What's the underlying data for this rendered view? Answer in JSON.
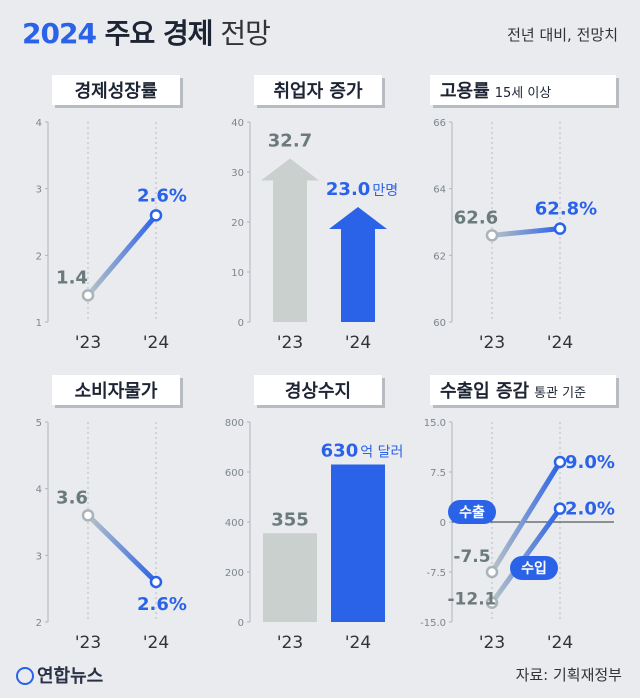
{
  "header": {
    "title_year": "2024",
    "title_main": " 주요 경제",
    "title_light": " 전망",
    "subtitle": "전년 대비, 전망치"
  },
  "footer": {
    "logo_text": "연합뉴스",
    "source": "자료: 기획재정부"
  },
  "colors": {
    "blue": "#2b63e8",
    "gray_text": "#6b7a7a",
    "gray_fill": "#c9d0cd",
    "gray_line": "#a9b4b8",
    "background": "#e9ebee",
    "panel_label_bg": "#ffffff"
  },
  "chart_data": [
    {
      "type": "line",
      "title": "경제성장률",
      "categories": [
        "'23",
        "'24"
      ],
      "values": [
        1.4,
        2.6
      ],
      "value_labels": [
        "1.4",
        "2.6%"
      ],
      "yticks": [
        1,
        2,
        3,
        4
      ],
      "ylim": [
        1,
        4
      ]
    },
    {
      "type": "bar",
      "title": "취업자 증가",
      "categories": [
        "'23",
        "'24"
      ],
      "values": [
        32.7,
        23.0
      ],
      "value_labels": [
        "32.7",
        "23.0"
      ],
      "unit_label": "만명",
      "yticks": [
        0,
        10,
        20,
        30,
        40
      ],
      "ylim": [
        0,
        40
      ]
    },
    {
      "type": "line",
      "title": "고용률",
      "title_note": "15세 이상",
      "categories": [
        "'23",
        "'24"
      ],
      "values": [
        62.6,
        62.8
      ],
      "value_labels": [
        "62.6",
        "62.8%"
      ],
      "yticks": [
        60,
        62,
        64,
        66
      ],
      "ylim": [
        60,
        66
      ]
    },
    {
      "type": "line",
      "title": "소비자물가",
      "categories": [
        "'23",
        "'24"
      ],
      "values": [
        3.6,
        2.6
      ],
      "value_labels": [
        "3.6",
        "2.6%"
      ],
      "yticks": [
        2,
        3,
        4,
        5
      ],
      "ylim": [
        2,
        5
      ]
    },
    {
      "type": "bar",
      "title": "경상수지",
      "categories": [
        "'23",
        "'24"
      ],
      "values": [
        355,
        630
      ],
      "value_labels": [
        "355",
        "630"
      ],
      "unit_label": "억 달러",
      "yticks": [
        0,
        200,
        400,
        600,
        800
      ],
      "ylim": [
        0,
        800
      ]
    },
    {
      "type": "line",
      "title": "수출입 증감",
      "title_note": "통관 기준",
      "categories": [
        "'23",
        "'24"
      ],
      "series": [
        {
          "name": "수출",
          "values": [
            -7.5,
            9.0
          ],
          "value_labels": [
            "-7.5",
            "9.0%"
          ]
        },
        {
          "name": "수입",
          "values": [
            -12.1,
            2.0
          ],
          "value_labels": [
            "-12.1",
            "2.0%"
          ]
        }
      ],
      "ytick_labels": [
        "15.0",
        "7.5",
        "0",
        "-7.5",
        "-15.0"
      ],
      "yticks": [
        15,
        7.5,
        0,
        -7.5,
        -15
      ],
      "ylim": [
        -15,
        15
      ]
    }
  ]
}
